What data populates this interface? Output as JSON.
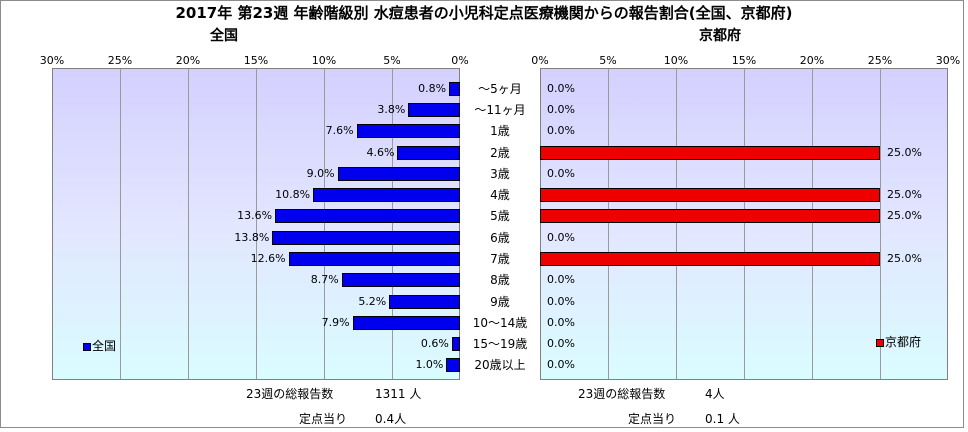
{
  "title": "2017年 第23週 年齢階級別 水痘患者の小児科定点医療機関からの報告割合(全国、京都府)",
  "left_panel": {
    "title": "全国",
    "legend": "全国",
    "footer_total_label": "23週の総報告数",
    "footer_total_value": "1311 人",
    "footer_per_label": "定点当り",
    "footer_per_value": "0.4人",
    "bar_color": "#0000ee"
  },
  "right_panel": {
    "title": "京都府",
    "legend": "京都府",
    "footer_total_label": "23週の総報告数",
    "footer_total_value": "4人",
    "footer_per_label": "定点当り",
    "footer_per_value": "0.1 人",
    "bar_color": "#ee0000"
  },
  "chart_data": [
    {
      "type": "bar",
      "orientation": "horizontal",
      "direction": "right-to-left",
      "title": "全国",
      "categories": [
        "～5ヶ月",
        "～11ヶ月",
        "1歳",
        "2歳",
        "3歳",
        "4歳",
        "5歳",
        "6歳",
        "7歳",
        "8歳",
        "9歳",
        "10～14歳",
        "15～19歳",
        "20歳以上"
      ],
      "series": [
        {
          "name": "全国",
          "values": [
            0.8,
            3.8,
            7.6,
            4.6,
            9.0,
            10.8,
            13.6,
            13.8,
            12.6,
            8.7,
            5.2,
            7.9,
            0.6,
            1.0
          ]
        }
      ],
      "value_labels": [
        "0.8%",
        "3.8%",
        "7.6%",
        "4.6%",
        "9.0%",
        "10.8%",
        "13.6%",
        "13.8%",
        "12.6%",
        "8.7%",
        "5.2%",
        "7.9%",
        "0.6%",
        "1.0%"
      ],
      "ticks": [
        "0%",
        "5%",
        "10%",
        "15%",
        "20%",
        "25%",
        "30%"
      ],
      "xlim": [
        0,
        30
      ],
      "grid": true,
      "legend_position": "bottom-left"
    },
    {
      "type": "bar",
      "orientation": "horizontal",
      "direction": "left-to-right",
      "title": "京都府",
      "categories": [
        "～5ヶ月",
        "～11ヶ月",
        "1歳",
        "2歳",
        "3歳",
        "4歳",
        "5歳",
        "6歳",
        "7歳",
        "8歳",
        "9歳",
        "10～14歳",
        "15～19歳",
        "20歳以上"
      ],
      "series": [
        {
          "name": "京都府",
          "values": [
            0.0,
            0.0,
            0.0,
            25.0,
            0.0,
            25.0,
            25.0,
            0.0,
            25.0,
            0.0,
            0.0,
            0.0,
            0.0,
            0.0
          ]
        }
      ],
      "value_labels": [
        "0.0%",
        "0.0%",
        "0.0%",
        "25.0%",
        "0.0%",
        "25.0%",
        "25.0%",
        "0.0%",
        "25.0%",
        "0.0%",
        "0.0%",
        "0.0%",
        "0.0%",
        "0.0%"
      ],
      "ticks": [
        "0%",
        "5%",
        "10%",
        "15%",
        "20%",
        "25%",
        "30%"
      ],
      "xlim": [
        0,
        30
      ],
      "grid": true,
      "legend_position": "bottom-right"
    }
  ]
}
